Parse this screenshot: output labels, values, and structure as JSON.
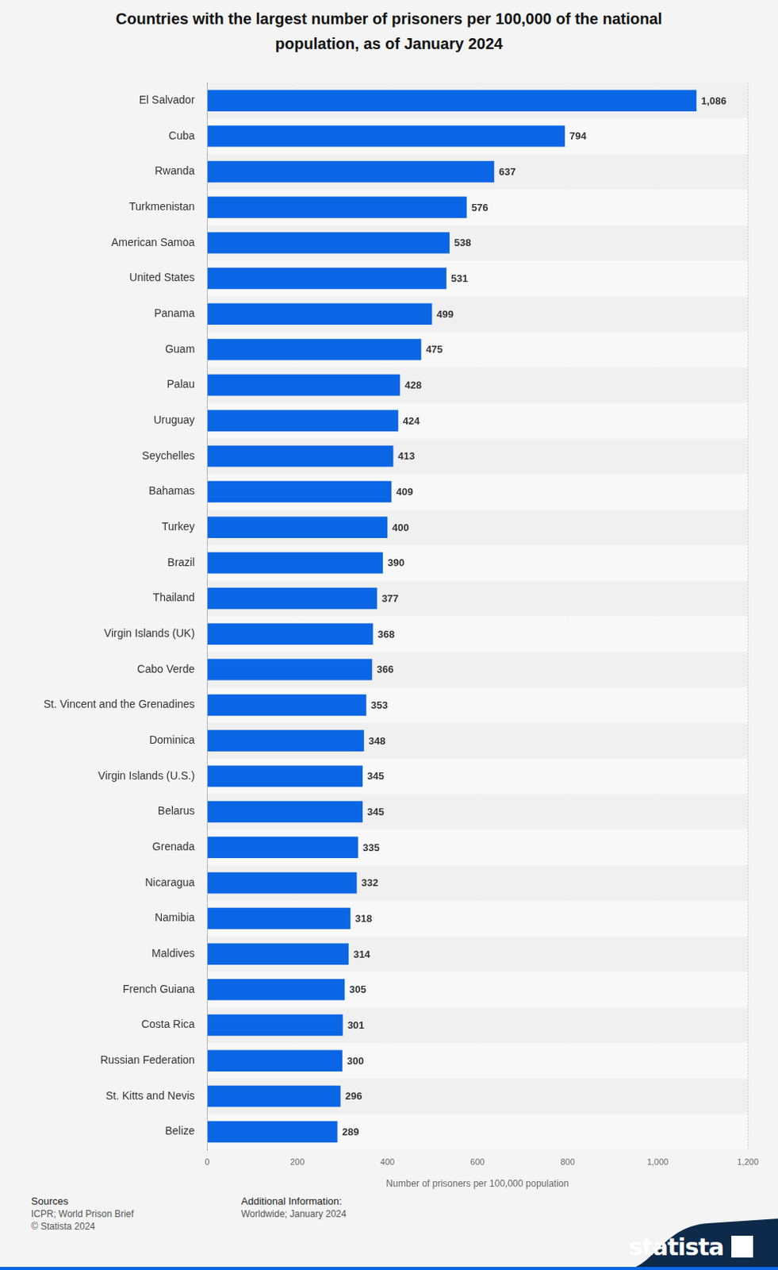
{
  "chart_data": {
    "type": "bar",
    "orientation": "horizontal",
    "title": "Countries with the largest number of prisoners per 100,000 of the national population, as of January 2024",
    "x_label": "Number of prisoners per 100,000 population",
    "categories": [
      "El Salvador",
      "Cuba",
      "Rwanda",
      "Turkmenistan",
      "American Samoa",
      "United States",
      "Panama",
      "Guam",
      "Palau",
      "Uruguay",
      "Seychelles",
      "Bahamas",
      "Turkey",
      "Brazil",
      "Thailand",
      "Virgin Islands (UK)",
      "Cabo Verde",
      "St. Vincent and the Grenadines",
      "Dominica",
      "Virgin Islands (U.S.)",
      "Belarus",
      "Grenada",
      "Nicaragua",
      "Namibia",
      "Maldives",
      "French Guiana",
      "Costa Rica",
      "Russian Federation",
      "St. Kitts and Nevis",
      "Belize"
    ],
    "values": [
      1086,
      794,
      637,
      576,
      538,
      531,
      499,
      475,
      428,
      424,
      413,
      409,
      400,
      390,
      377,
      368,
      366,
      353,
      348,
      345,
      345,
      335,
      332,
      318,
      314,
      305,
      301,
      300,
      296,
      289
    ],
    "value_labels": [
      "1,086",
      "794",
      "637",
      "576",
      "538",
      "531",
      "499",
      "475",
      "428",
      "424",
      "413",
      "409",
      "400",
      "390",
      "377",
      "368",
      "366",
      "353",
      "348",
      "345",
      "345",
      "335",
      "332",
      "318",
      "314",
      "305",
      "301",
      "300",
      "296",
      "289"
    ],
    "color": "#0a66e4",
    "xlim": [
      0,
      1200
    ],
    "xticks": [
      0,
      200,
      400,
      600,
      800,
      {
        "value": 1000,
        "label": "1,000"
      },
      {
        "value": 1200,
        "label": "1,200"
      }
    ],
    "grid": true,
    "data_labels": true
  },
  "footer": {
    "sources_heading": "Sources",
    "sources": [
      "ICPR; World Prison Brief",
      "© Statista 2024"
    ],
    "info_heading": "Additional Information:",
    "info": [
      "Worldwide; January 2024"
    ],
    "logo": "statista"
  }
}
